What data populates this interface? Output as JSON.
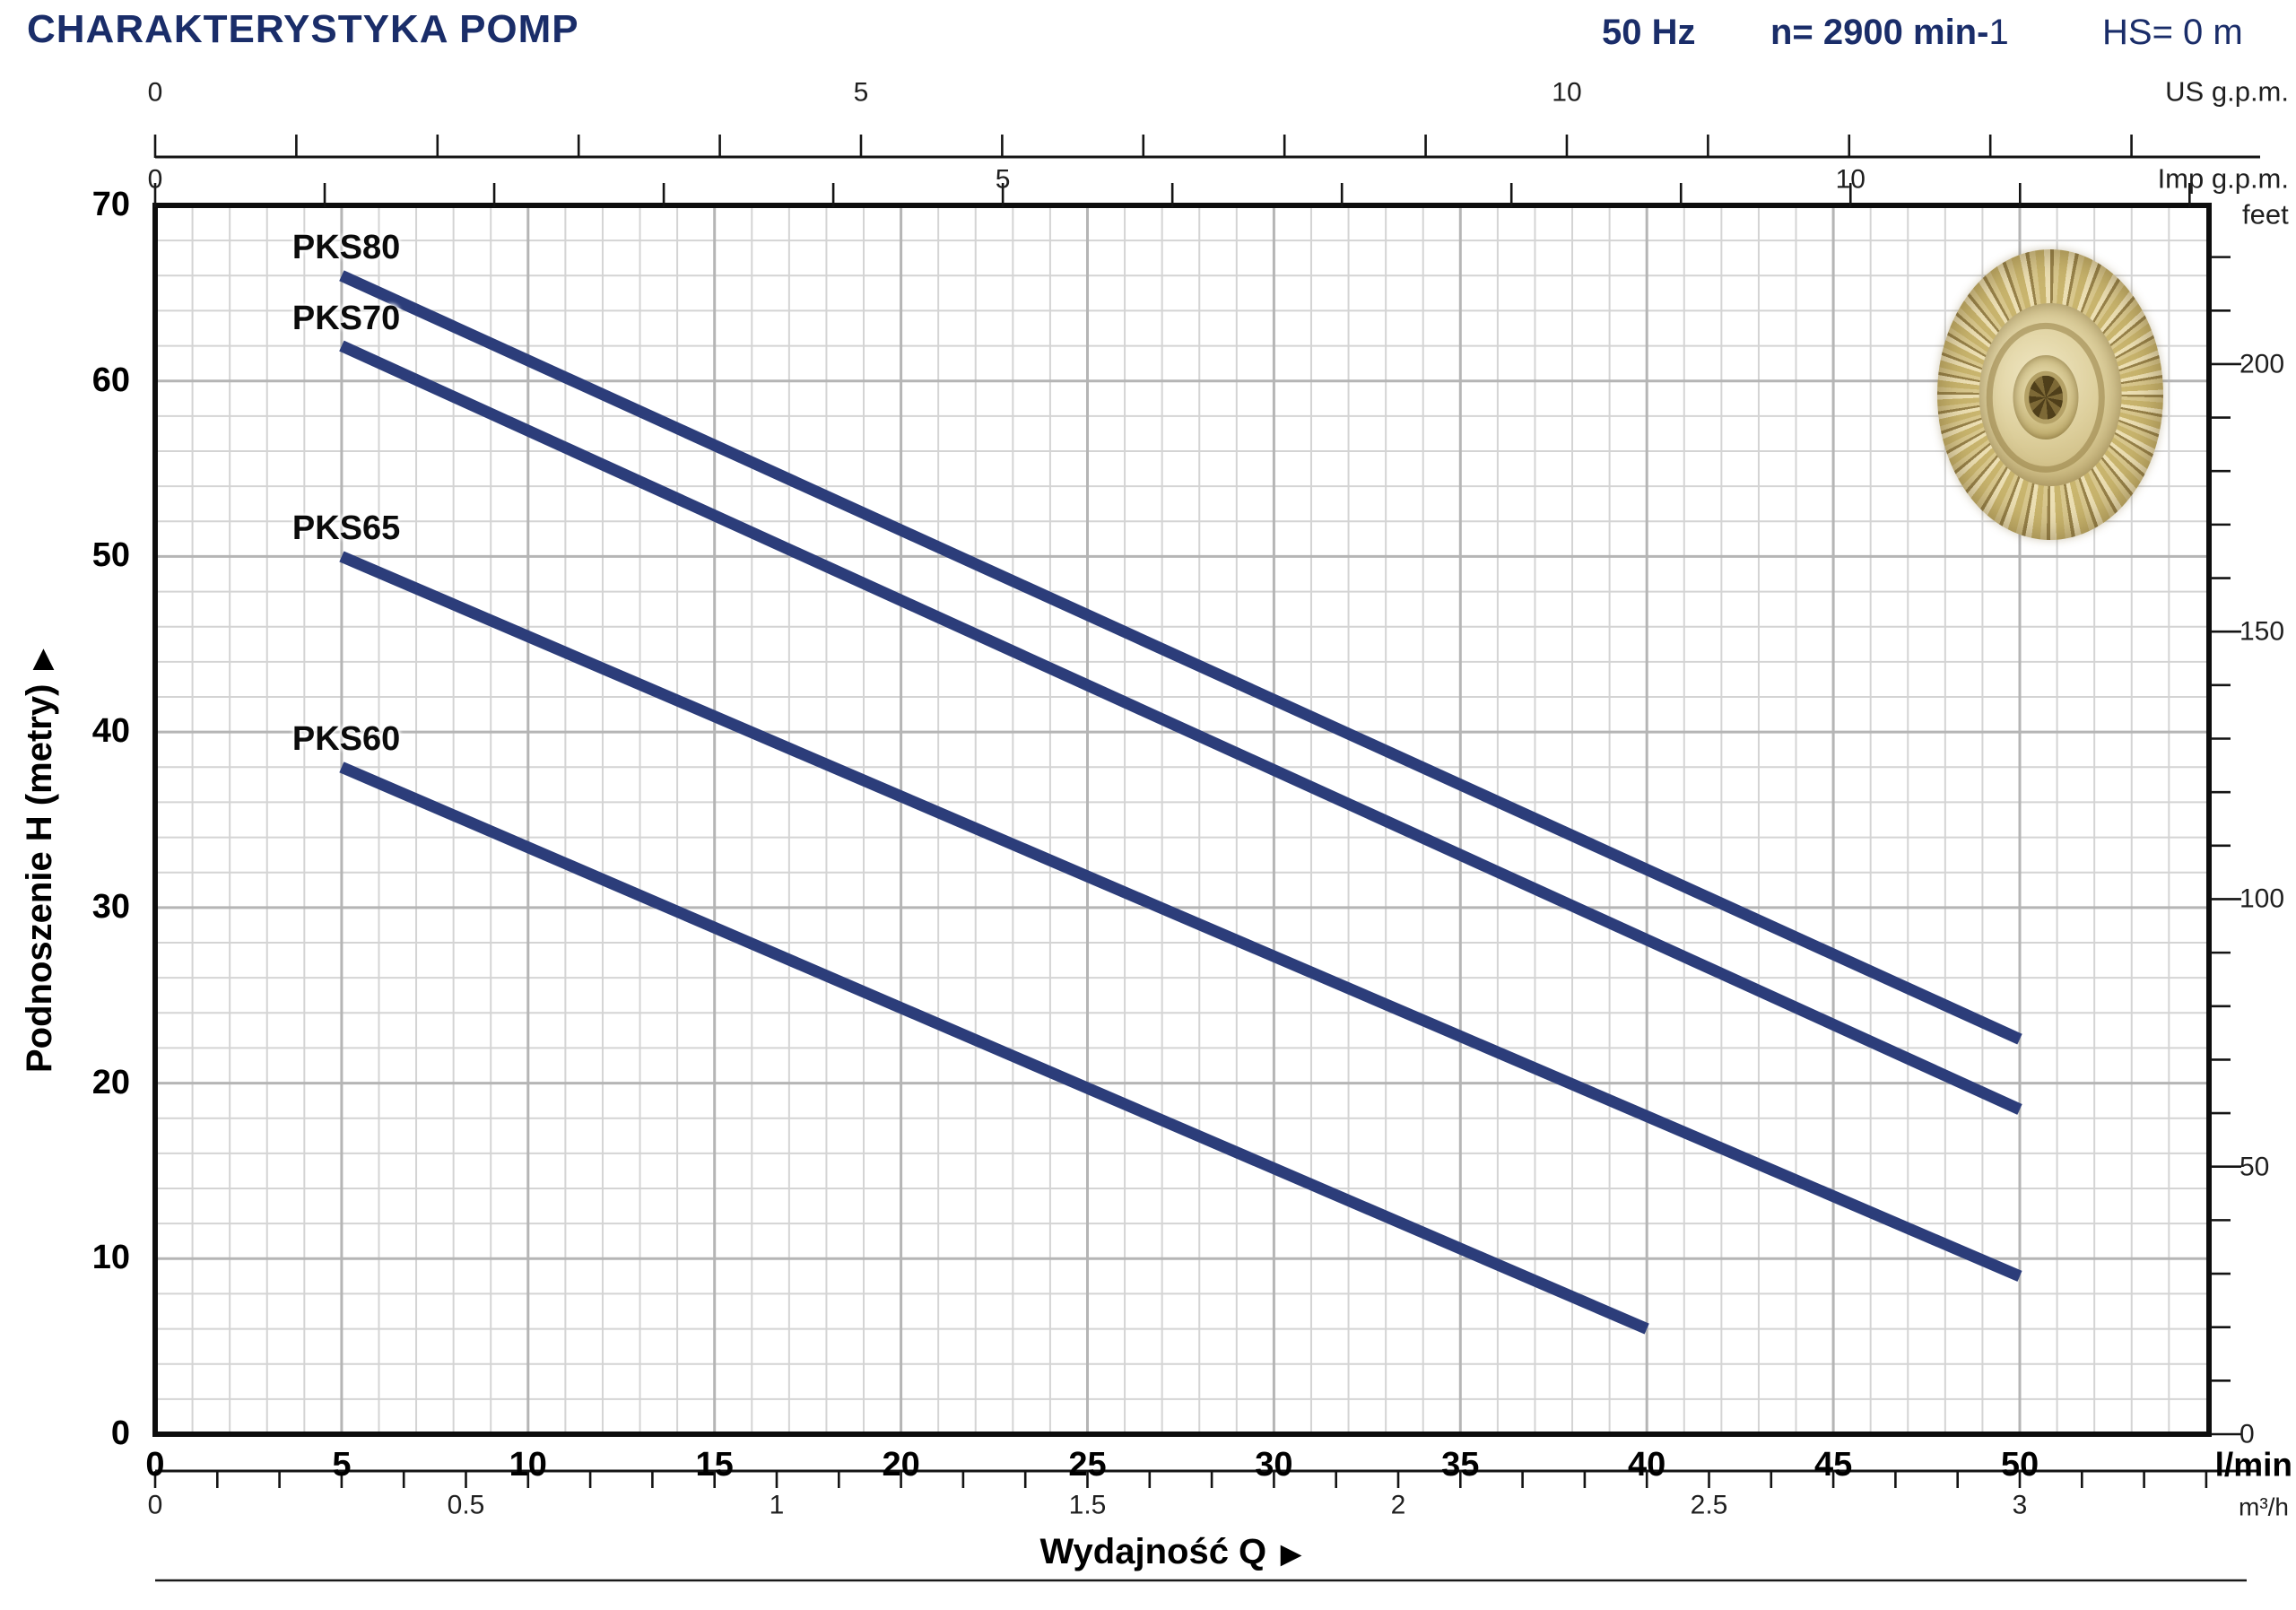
{
  "header": {
    "title": "CHARAKTERYSTYKA POMP",
    "frequency": "50 Hz",
    "speed_prefix": "n= 2900 min-",
    "speed_exponent": "1",
    "suction": "HS= 0 m"
  },
  "y_axis_title": "Podnoszenie H  (metry)",
  "x_axis_title": "Wydajność Q",
  "icons": {
    "axis_arrow": "▶"
  },
  "axes": {
    "us_gpm": {
      "unit": "US g.p.m.",
      "labels": [
        0,
        5,
        10
      ]
    },
    "imp_gpm": {
      "unit": "Imp g.p.m.",
      "labels": [
        0,
        5,
        10
      ]
    },
    "lmin": {
      "unit": "l/min",
      "labels": [
        0,
        5,
        10,
        15,
        20,
        25,
        30,
        35,
        40,
        45,
        50
      ]
    },
    "m3h": {
      "unit": "m³/h",
      "labels": [
        0,
        0.5,
        1,
        1.5,
        2,
        2.5,
        3
      ]
    },
    "metry": {
      "labels": [
        0,
        10,
        20,
        30,
        40,
        50,
        60,
        70
      ]
    },
    "feet": {
      "unit": "feet",
      "labels": [
        0,
        50,
        100,
        150,
        200
      ]
    }
  },
  "chart_data": {
    "type": "line",
    "title": "CHARAKTERYSTYKA POMP",
    "xlabel": "Wydajność Q (l/min)",
    "ylabel": "Podnoszenie H (metry)",
    "xlim_lmin": [
      0,
      55
    ],
    "ylim_m": [
      0,
      70
    ],
    "grid": "on",
    "minor_grid_step": {
      "x_lmin": 1,
      "y_m": 2
    },
    "major_grid_step": {
      "x_lmin": 5,
      "y_m": 10
    },
    "x_unit_conversions": {
      "us_gpm_per_lmin": 0.264172,
      "imp_gpm_per_lmin": 0.219969,
      "m3h_per_lmin": 0.06
    },
    "feet_per_m": 3.28084,
    "series": [
      {
        "name": "PKS80",
        "points_lmin_m": [
          [
            5,
            66
          ],
          [
            50,
            22.5
          ]
        ]
      },
      {
        "name": "PKS70",
        "points_lmin_m": [
          [
            5,
            62
          ],
          [
            50,
            18.5
          ]
        ]
      },
      {
        "name": "PKS65",
        "points_lmin_m": [
          [
            5,
            50
          ],
          [
            50,
            9
          ]
        ]
      },
      {
        "name": "PKS60",
        "points_lmin_m": [
          [
            5,
            38
          ],
          [
            40,
            6
          ]
        ]
      }
    ]
  },
  "colors": {
    "header_navy": "#1a2d69",
    "curve_navy": "#2c3d7a",
    "grid_minor": "#d4d4d4",
    "grid_major": "#b5b5b5",
    "frame_black": "#0d0d0d",
    "tick_black": "#141414",
    "impeller_brass": "#d8c78d"
  },
  "impeller_label": "brass peripheral pump impeller"
}
